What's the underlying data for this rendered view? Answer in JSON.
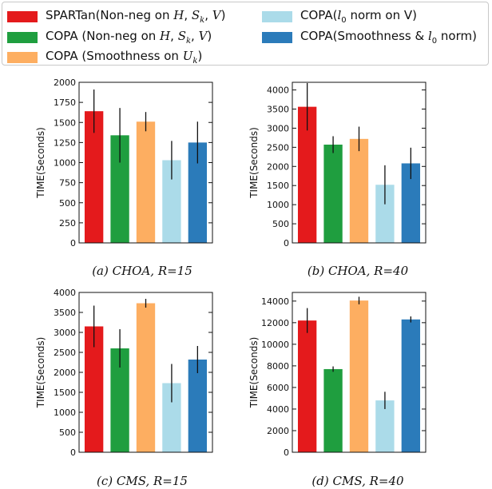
{
  "legend": {
    "items": [
      {
        "key": "spartan",
        "color": "#e41a1c",
        "label_html": "SPARTan(Non-neg on <i>H</i>, <i>S<sub>k</sub></i>, <i>V</i>)"
      },
      {
        "key": "copa_nonneg",
        "color": "#1f9e3f",
        "label_html": "COPA (Non-neg on <i>H</i>, <i>S<sub>k</sub></i>, <i>V</i>)"
      },
      {
        "key": "copa_smooth",
        "color": "#fdae61",
        "label_html": "COPA (Smoothness on <i>U<sub>k</sub></i>)"
      },
      {
        "key": "copa_l0",
        "color": "#abdbe9",
        "label_html": "COPA(<i>l</i><sub>0</sub> norm on V)"
      },
      {
        "key": "copa_smooth_l0",
        "color": "#2b7bba",
        "label_html": "COPA(Smoothness &amp; <i>l</i><sub>0</sub> norm)"
      }
    ]
  },
  "chart_data": [
    {
      "type": "bar",
      "caption": "(a) CHOA, R=15",
      "ylabel": "TIME(Seconds)",
      "ylim": [
        0,
        2000
      ],
      "yticks": [
        0,
        250,
        500,
        750,
        1000,
        1250,
        1500,
        1750,
        2000
      ],
      "values": [
        1640,
        1340,
        1510,
        1030,
        1250
      ],
      "errors": [
        270,
        340,
        120,
        240,
        260
      ],
      "colors": [
        "#e41a1c",
        "#1f9e3f",
        "#fdae61",
        "#abdbe9",
        "#2b7bba"
      ]
    },
    {
      "type": "bar",
      "caption": "(b) CHOA, R=40",
      "ylabel": "TIME(Seconds)",
      "ylim": [
        0,
        4200
      ],
      "yticks": [
        0,
        500,
        1000,
        1500,
        2000,
        2500,
        3000,
        3500,
        4000
      ],
      "values": [
        3560,
        2570,
        2720,
        1520,
        2080
      ],
      "errors": [
        620,
        220,
        320,
        510,
        410
      ],
      "colors": [
        "#e41a1c",
        "#1f9e3f",
        "#fdae61",
        "#abdbe9",
        "#2b7bba"
      ]
    },
    {
      "type": "bar",
      "caption": "(c) CMS, R=15",
      "ylabel": "TIME(Seconds)",
      "ylim": [
        0,
        4000
      ],
      "yticks": [
        0,
        500,
        1000,
        1500,
        2000,
        2500,
        3000,
        3500,
        4000
      ],
      "values": [
        3150,
        2600,
        3730,
        1730,
        2320
      ],
      "errors": [
        520,
        480,
        110,
        480,
        340
      ],
      "colors": [
        "#e41a1c",
        "#1f9e3f",
        "#fdae61",
        "#abdbe9",
        "#2b7bba"
      ]
    },
    {
      "type": "bar",
      "caption": "(d) CMS, R=40",
      "ylabel": "TIME(Seconds)",
      "ylim": [
        0,
        14800
      ],
      "yticks": [
        0,
        2000,
        4000,
        6000,
        8000,
        10000,
        12000,
        14000
      ],
      "values": [
        12200,
        7700,
        14050,
        4800,
        12300
      ],
      "errors": [
        1150,
        250,
        350,
        800,
        280
      ],
      "colors": [
        "#e41a1c",
        "#1f9e3f",
        "#fdae61",
        "#abdbe9",
        "#2b7bba"
      ]
    }
  ]
}
